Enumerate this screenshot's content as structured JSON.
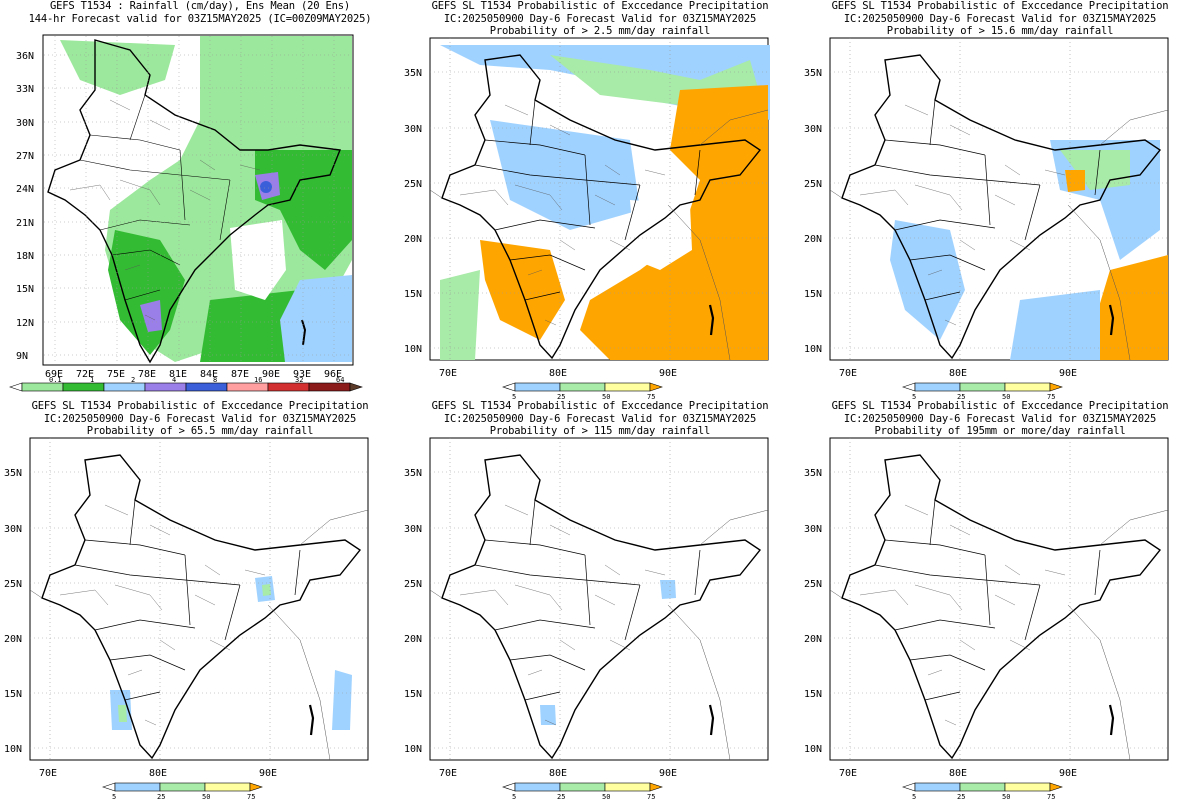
{
  "panels": [
    {
      "titles": [
        "GEFS T1534 : Rainfall (cm/day), Ens Mean (20 Ens)",
        "144-hr Forecast valid for 03Z15MAY2025 (IC=00Z09MAY2025)"
      ],
      "lat_ticks": [
        "36N",
        "33N",
        "30N",
        "27N",
        "24N",
        "21N",
        "18N",
        "15N",
        "12N",
        "9N"
      ],
      "lon_ticks": [
        "69E",
        "72E",
        "75E",
        "78E",
        "81E",
        "84E",
        "87E",
        "90E",
        "93E",
        "96E"
      ],
      "colorbar": {
        "labels": [
          "0.1",
          "1",
          "2",
          "4",
          "8",
          "16",
          "32",
          "64"
        ],
        "colors": [
          "#ffffff",
          "#9ce89c",
          "#33bb33",
          "#a0d2ff",
          "#9b7fe8",
          "#3a5fd9",
          "#ff9fa0",
          "#d23030",
          "#8b1a1a",
          "#5c3a2a"
        ]
      }
    },
    {
      "titles": [
        "GEFS SL T1534 Probabilistic of Exccedance Precipitation",
        "IC:2025050900 Day-6 Forecast Valid for 03Z15MAY2025",
        "Probability of > 2.5 mm/day rainfall"
      ],
      "lat_ticks": [
        "35N",
        "30N",
        "25N",
        "20N",
        "15N",
        "10N"
      ],
      "lon_ticks": [
        "70E",
        "80E",
        "90E"
      ],
      "colorbar": {
        "labels": [
          "5",
          "25",
          "50",
          "75"
        ],
        "colors": [
          "#ffffff",
          "#a0d2ff",
          "#a8eaa8",
          "#ffffa0",
          "#ffa500"
        ]
      }
    },
    {
      "titles": [
        "GEFS SL T1534 Probabilistic of Exccedance Precipitation",
        "IC:2025050900 Day-6 Forecast Valid for 03Z15MAY2025",
        "Probability of > 15.6 mm/day rainfall"
      ],
      "lat_ticks": [
        "35N",
        "30N",
        "25N",
        "20N",
        "15N",
        "10N"
      ],
      "lon_ticks": [
        "70E",
        "80E",
        "90E"
      ],
      "colorbar": {
        "labels": [
          "5",
          "25",
          "50",
          "75"
        ],
        "colors": [
          "#ffffff",
          "#a0d2ff",
          "#a8eaa8",
          "#ffffa0",
          "#ffa500"
        ]
      }
    },
    {
      "titles": [
        "GEFS SL T1534 Probabilistic of Exccedance Precipitation",
        "IC:2025050900 Day-6 Forecast Valid for 03Z15MAY2025",
        "Probability of > 65.5 mm/day rainfall"
      ],
      "lat_ticks": [
        "35N",
        "30N",
        "25N",
        "20N",
        "15N",
        "10N"
      ],
      "lon_ticks": [
        "70E",
        "80E",
        "90E"
      ],
      "colorbar": {
        "labels": [
          "5",
          "25",
          "50",
          "75"
        ],
        "colors": [
          "#ffffff",
          "#a0d2ff",
          "#a8eaa8",
          "#ffffa0",
          "#ffa500"
        ]
      }
    },
    {
      "titles": [
        "GEFS SL T1534 Probabilistic of Exccedance Precipitation",
        "IC:2025050900 Day-6 Forecast Valid for 03Z15MAY2025",
        "Probability of > 115 mm/day rainfall"
      ],
      "lat_ticks": [
        "35N",
        "30N",
        "25N",
        "20N",
        "15N",
        "10N"
      ],
      "lon_ticks": [
        "70E",
        "80E",
        "90E"
      ],
      "colorbar": {
        "labels": [
          "5",
          "25",
          "50",
          "75"
        ],
        "colors": [
          "#ffffff",
          "#a0d2ff",
          "#a8eaa8",
          "#ffffa0",
          "#ffa500"
        ]
      }
    },
    {
      "titles": [
        "GEFS SL T1534 Probabilistic of Exccedance Precipitation",
        "IC:2025050900 Day-6 Forecast Valid for 03Z15MAY2025",
        "Probability of 195mm or more/day rainfall"
      ],
      "lat_ticks": [
        "35N",
        "30N",
        "25N",
        "20N",
        "15N",
        "10N"
      ],
      "lon_ticks": [
        "70E",
        "80E",
        "90E"
      ],
      "colorbar": {
        "labels": [
          "5",
          "25",
          "50",
          "75"
        ],
        "colors": [
          "#ffffff",
          "#a0d2ff",
          "#a8eaa8",
          "#ffffa0",
          "#ffa500"
        ]
      }
    }
  ]
}
